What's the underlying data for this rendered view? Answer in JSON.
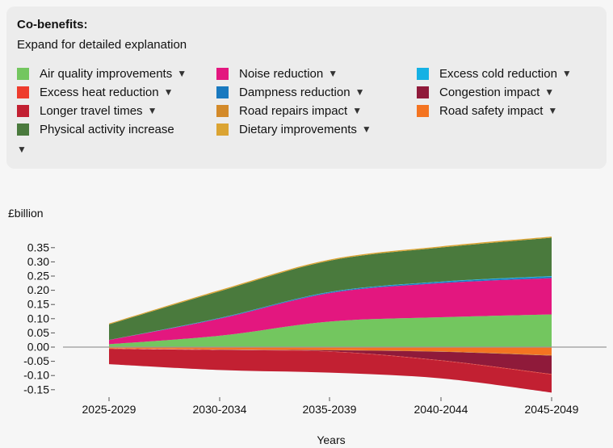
{
  "legend": {
    "title": "Co-benefits:",
    "subtitle": "Expand for detailed explanation",
    "more_caret": "▼",
    "items": [
      {
        "label": "Air quality improvements",
        "color": "#73c65f",
        "caret": "▼"
      },
      {
        "label": "Noise reduction",
        "color": "#e3177f",
        "caret": "▼"
      },
      {
        "label": "Excess cold reduction",
        "color": "#15b1e4",
        "caret": "▼"
      },
      {
        "label": "Excess heat reduction",
        "color": "#ee3c2d",
        "caret": "▼"
      },
      {
        "label": "Dampness reduction",
        "color": "#1a79bf",
        "caret": "▼"
      },
      {
        "label": "Congestion impact",
        "color": "#8f1a3a",
        "caret": "▼"
      },
      {
        "label": "Longer travel times",
        "color": "#c22032",
        "caret": "▼"
      },
      {
        "label": "Road repairs impact",
        "color": "#d38a2a",
        "caret": "▼"
      },
      {
        "label": "Road safety impact",
        "color": "#f47421",
        "caret": "▼"
      },
      {
        "label": "Physical activity increase",
        "color": "#4a7a3d",
        "caret": ""
      },
      {
        "label": "Dietary improvements",
        "color": "#dba433",
        "caret": "▼"
      }
    ]
  },
  "chart_data": {
    "type": "area",
    "x": [
      "2025-2029",
      "2030-2034",
      "2035-2039",
      "2040-2044",
      "2045-2049"
    ],
    "ylabel": "£billion",
    "xlabel": "Years",
    "ylim": [
      -0.17,
      0.4
    ],
    "yticks": [
      "0.35",
      "0.30",
      "0.25",
      "0.20",
      "0.15",
      "0.10",
      "0.05",
      "0.00",
      "-0.05",
      "-0.10",
      "-0.15"
    ],
    "ytick_values": [
      0.35,
      0.3,
      0.25,
      0.2,
      0.15,
      0.1,
      0.05,
      0.0,
      -0.05,
      -0.1,
      -0.15
    ],
    "positive_series": [
      {
        "name": "Air quality improvements",
        "color": "#73c65f",
        "values": [
          0.01,
          0.04,
          0.09,
          0.105,
          0.115
        ]
      },
      {
        "name": "Noise reduction",
        "color": "#e3177f",
        "values": [
          0.015,
          0.06,
          0.1,
          0.12,
          0.128
        ]
      },
      {
        "name": "Dampness reduction",
        "color": "#1a79bf",
        "values": [
          0.0,
          0.002,
          0.003,
          0.004,
          0.005
        ]
      },
      {
        "name": "Excess cold reduction",
        "color": "#15b1e4",
        "values": [
          0.0,
          0.0005,
          0.001,
          0.0015,
          0.002
        ]
      },
      {
        "name": "Physical activity increase",
        "color": "#4a7a3d",
        "values": [
          0.055,
          0.094,
          0.11,
          0.12,
          0.135
        ]
      },
      {
        "name": "Dietary improvements",
        "color": "#dba433",
        "values": [
          0.003,
          0.004,
          0.004,
          0.004,
          0.004
        ]
      }
    ],
    "negative_series": [
      {
        "name": "Road safety impact",
        "color": "#f47421",
        "values": [
          -0.005,
          -0.008,
          -0.01,
          -0.015,
          -0.028
        ]
      },
      {
        "name": "Road repairs impact",
        "color": "#d38a2a",
        "values": [
          -0.0005,
          -0.0008,
          -0.001,
          -0.0015,
          -0.002
        ]
      },
      {
        "name": "Congestion impact",
        "color": "#8f1a3a",
        "values": [
          0.0,
          -0.001,
          -0.004,
          -0.03,
          -0.065
        ]
      },
      {
        "name": "Excess heat reduction",
        "color": "#ee3c2d",
        "values": [
          -0.0005,
          -0.0008,
          -0.001,
          -0.0015,
          -0.002
        ]
      },
      {
        "name": "Longer travel times",
        "color": "#c22032",
        "values": [
          -0.054,
          -0.07,
          -0.074,
          -0.062,
          -0.063
        ]
      }
    ]
  }
}
